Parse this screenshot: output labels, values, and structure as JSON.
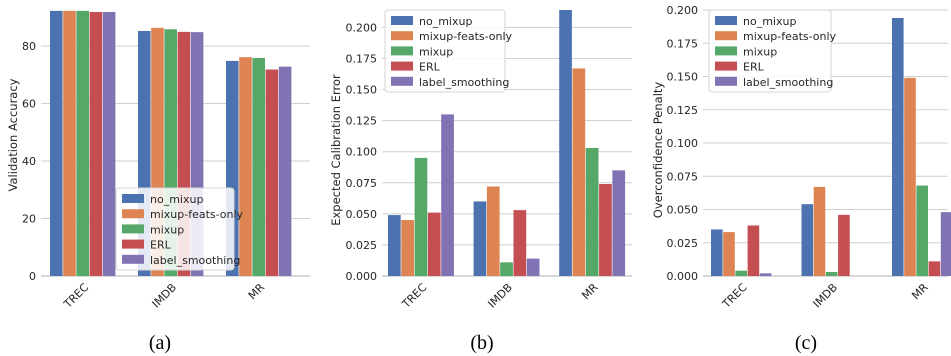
{
  "series_colors": [
    "#4c72b0",
    "#dd8452",
    "#55a868",
    "#c44e52",
    "#8172b3"
  ],
  "legend_labels": [
    "no_mixup",
    "mixup-feats-only",
    "mixup",
    "ERL",
    "label_smoothing"
  ],
  "captions": [
    "(a)",
    "(b)",
    "(c)"
  ],
  "chart_data": [
    {
      "type": "bar",
      "ylabel": "Validation Accuracy",
      "categories": [
        "TREC",
        "IMDB",
        "MR"
      ],
      "yticks": [
        0,
        20,
        40,
        60,
        80
      ],
      "ylim": [
        0,
        92.5
      ],
      "legend_position": "lower-right",
      "series": [
        {
          "name": "no_mixup",
          "values": [
            92.2,
            85.2,
            74.8
          ]
        },
        {
          "name": "mixup-feats-only",
          "values": [
            92.2,
            86.3,
            76.1
          ]
        },
        {
          "name": "mixup",
          "values": [
            92.2,
            85.8,
            75.8
          ]
        },
        {
          "name": "ERL",
          "values": [
            91.8,
            84.9,
            71.8
          ]
        },
        {
          "name": "label_smoothing",
          "values": [
            91.8,
            84.8,
            72.8
          ]
        }
      ]
    },
    {
      "type": "bar",
      "ylabel": "Expected Calibration Error",
      "categories": [
        "TREC",
        "IMDB",
        "MR"
      ],
      "yticks": [
        0.0,
        0.025,
        0.05,
        0.075,
        0.1,
        0.125,
        0.15,
        0.175,
        0.2
      ],
      "ytick_labels": [
        "0.000",
        "0.025",
        "0.050",
        "0.075",
        "0.100",
        "0.125",
        "0.150",
        "0.175",
        "0.200"
      ],
      "ylim": [
        0,
        0.214
      ],
      "legend_position": "top-left",
      "series": [
        {
          "name": "no_mixup",
          "values": [
            0.049,
            0.06,
            0.214
          ]
        },
        {
          "name": "mixup-feats-only",
          "values": [
            0.045,
            0.072,
            0.167
          ]
        },
        {
          "name": "mixup",
          "values": [
            0.095,
            0.011,
            0.103
          ]
        },
        {
          "name": "ERL",
          "values": [
            0.051,
            0.053,
            0.074
          ]
        },
        {
          "name": "label_smoothing",
          "values": [
            0.13,
            0.014,
            0.085
          ]
        }
      ]
    },
    {
      "type": "bar",
      "ylabel": "Overconfidence Penalty",
      "categories": [
        "TREC",
        "IMDB",
        "MR"
      ],
      "yticks": [
        0.0,
        0.025,
        0.05,
        0.075,
        0.1,
        0.125,
        0.15,
        0.175,
        0.2
      ],
      "ytick_labels": [
        "0.000",
        "0.025",
        "0.050",
        "0.075",
        "0.100",
        "0.125",
        "0.150",
        "0.175",
        "0.200"
      ],
      "ylim": [
        0,
        0.2
      ],
      "legend_position": "top-left",
      "series": [
        {
          "name": "no_mixup",
          "values": [
            0.035,
            0.054,
            0.194
          ]
        },
        {
          "name": "mixup-feats-only",
          "values": [
            0.033,
            0.067,
            0.149
          ]
        },
        {
          "name": "mixup",
          "values": [
            0.004,
            0.003,
            0.068
          ]
        },
        {
          "name": "ERL",
          "values": [
            0.038,
            0.046,
            0.011
          ]
        },
        {
          "name": "label_smoothing",
          "values": [
            0.002,
            0.0,
            0.048
          ]
        }
      ]
    }
  ]
}
